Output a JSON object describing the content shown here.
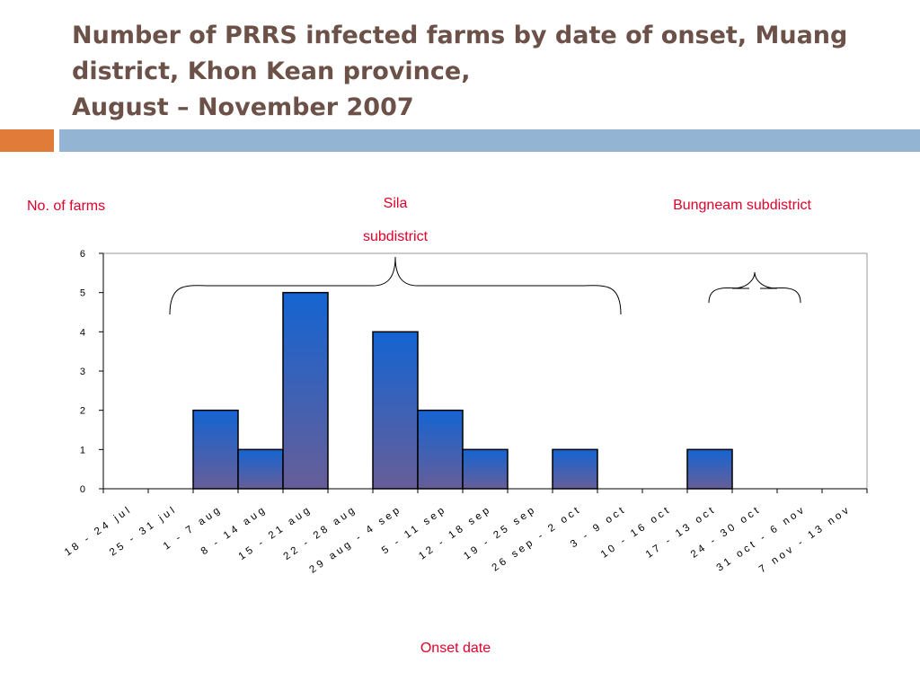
{
  "slide": {
    "title_lines": [
      "Number of PRRS infected farms by date of onset, Muang",
      "district, Khon Kean province,",
      "August – November 2007"
    ]
  },
  "chart_data": {
    "type": "bar",
    "title": "",
    "ylabel": "No. of farms",
    "xlabel": "Onset date",
    "ylim": [
      0,
      6
    ],
    "yticks": [
      0,
      1,
      2,
      3,
      4,
      5,
      6
    ],
    "categories": [
      "18 - 24 jul",
      "25 - 31 jul",
      "1 - 7 aug",
      "8 - 14 aug",
      "15 - 21 aug",
      "22 - 28 aug",
      "29 aug - 4 sep",
      "5 - 11 sep",
      "12 - 18 sep",
      "19 - 25 sep",
      "26 sep - 2 oct",
      "3 - 9 oct",
      "10 - 16 oct",
      "17 - 13 oct",
      "24 - 30 oct",
      "31 oct - 6 nov",
      "7 nov - 13 nov"
    ],
    "values": [
      0,
      0,
      2,
      1,
      5,
      0,
      4,
      2,
      1,
      0,
      1,
      0,
      0,
      1,
      0,
      0,
      0
    ],
    "annotations": [
      {
        "lines": [
          "Sila",
          "subdistrict"
        ],
        "from_category": 1,
        "to_category": 11
      },
      {
        "lines": [
          "Bungneam subdistrict"
        ],
        "from_category": 13,
        "to_category": 15
      }
    ],
    "bar_color_top": "#1464d2",
    "bar_color_bottom": "#675e98",
    "label_color": "#e0002a",
    "grid": false
  }
}
